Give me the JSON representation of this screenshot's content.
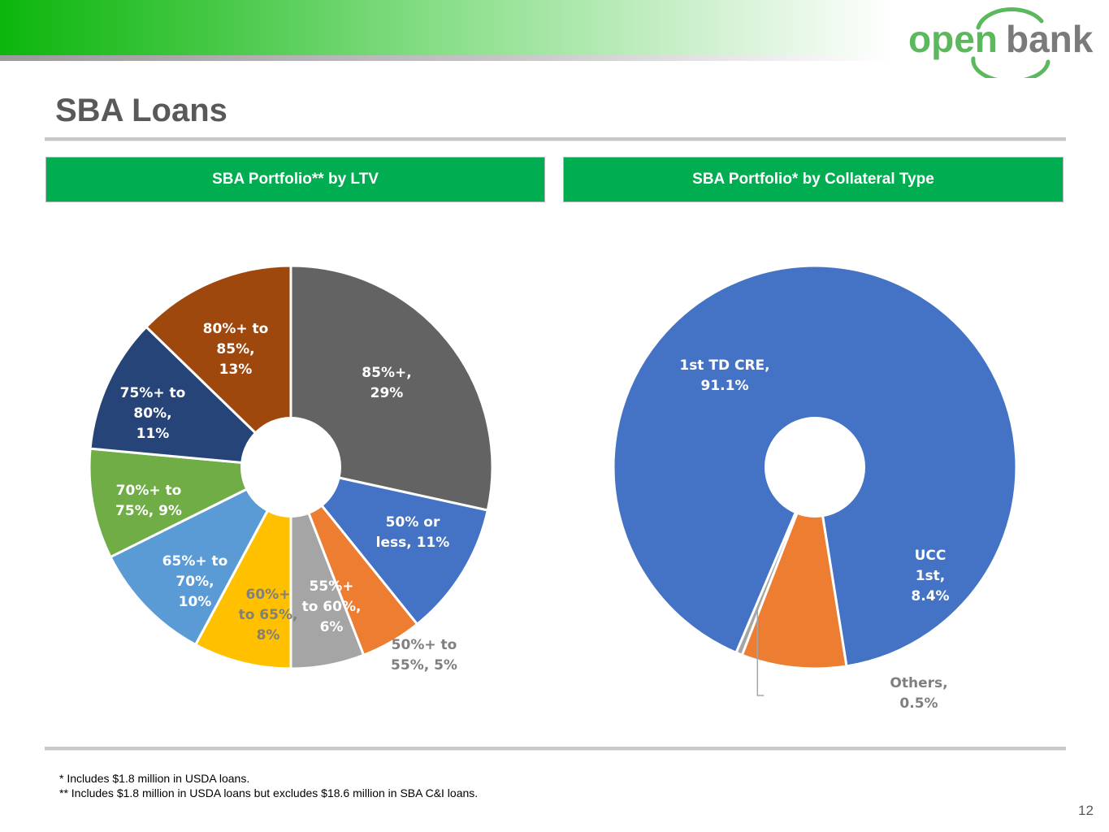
{
  "brand": {
    "logo_part1": "open",
    "logo_part2": "bank",
    "accent": "#00ad50",
    "logo_green": "#5cb85c",
    "logo_gray": "#7a7a7a"
  },
  "page": {
    "title": "SBA Loans",
    "page_number": "12"
  },
  "headers": {
    "left": "SBA Portfolio** by LTV",
    "right": "SBA Portfolio* by Collateral Type"
  },
  "footnotes": [
    "* Includes $1.8 million in USDA loans.",
    "** Includes $1.8 million in USDA loans but excludes $18.6 million in SBA C&I loans."
  ],
  "chart_data": [
    {
      "type": "pie",
      "variant": "donut",
      "title": "SBA Portfolio** by LTV",
      "categories": [
        "85%+",
        "50% or less",
        "50%+ to 55%",
        "55%+ to 60%",
        "60%+ to 65%",
        "65%+ to 70%",
        "70%+ to 75%",
        "75%+ to 80%",
        "80%+ to 85%"
      ],
      "values": [
        29,
        11,
        5,
        6,
        8,
        10,
        9,
        11,
        13
      ],
      "unit": "%",
      "colors": [
        "#636363",
        "#4472c4",
        "#ed7d31",
        "#a5a5a5",
        "#ffc000",
        "#5b9bd5",
        "#70ad47",
        "#264478",
        "#9e480e"
      ],
      "data_labels": [
        [
          "85%+,",
          "29%"
        ],
        [
          "50% or",
          "less, 11%"
        ],
        [
          "50%+ to",
          "55%, 5%"
        ],
        [
          "55%+",
          "to 60%,",
          "6%"
        ],
        [
          "60%+",
          "to 65%,",
          "8%"
        ],
        [
          "65%+ to",
          "70%,",
          "10%"
        ],
        [
          "70%+ to",
          "75%, 9%"
        ],
        [
          "75%+ to",
          "80%,",
          "11%"
        ],
        [
          "80%+ to",
          "85%,",
          "13%"
        ]
      ],
      "legend": "none"
    },
    {
      "type": "pie",
      "variant": "donut",
      "title": "SBA Portfolio* by Collateral Type",
      "categories": [
        "1st TD CRE",
        "UCC 1st",
        "Others"
      ],
      "values": [
        91.1,
        8.4,
        0.5
      ],
      "unit": "%",
      "colors": [
        "#4472c4",
        "#ed7d31",
        "#a5a5a5"
      ],
      "data_labels": [
        [
          "1st TD CRE,",
          "91.1%"
        ],
        [
          "UCC",
          "1st,",
          "8.4%"
        ],
        [
          "Others,",
          "0.5%"
        ]
      ],
      "legend": "none"
    }
  ]
}
